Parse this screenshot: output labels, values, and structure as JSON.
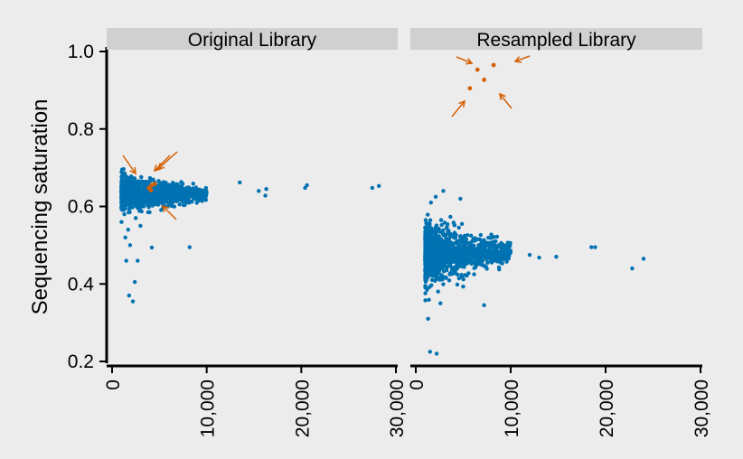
{
  "chart_data": {
    "type": "scatter",
    "ylabel": "Sequencing saturation",
    "xlabel": "",
    "xlim": [
      0,
      30000
    ],
    "ylim": [
      0.2,
      1.0
    ],
    "x_ticks": [
      0,
      10000,
      20000,
      30000
    ],
    "x_tick_labels": [
      "0",
      "10,000",
      "20,000",
      "30,000"
    ],
    "y_ticks": [
      0.2,
      0.4,
      0.6,
      0.8,
      1.0
    ],
    "y_tick_labels": [
      "0.2",
      "0.4",
      "0.6",
      "0.8",
      "1.0"
    ],
    "grid": false,
    "colors": {
      "points": "#0072b2",
      "highlight": "#d55e00",
      "strip": "#d0d0d0",
      "background": "#ececec"
    },
    "panels": [
      {
        "title": "Original Library",
        "cluster": {
          "x_range": [
            1000,
            10000
          ],
          "y_center": 0.632,
          "y_spread": 0.018
        },
        "outliers": [
          [
            13500,
            0.662
          ],
          [
            15500,
            0.64
          ],
          [
            16200,
            0.628
          ],
          [
            16300,
            0.645
          ],
          [
            20400,
            0.648
          ],
          [
            20600,
            0.655
          ],
          [
            27500,
            0.648
          ],
          [
            28200,
            0.653
          ],
          [
            8200,
            0.495
          ],
          [
            4200,
            0.494
          ],
          [
            1800,
            0.37
          ],
          [
            2200,
            0.355
          ],
          [
            2400,
            0.405
          ],
          [
            1500,
            0.46
          ],
          [
            2700,
            0.46
          ],
          [
            1400,
            0.52
          ],
          [
            1700,
            0.54
          ],
          [
            3000,
            0.55
          ],
          [
            1900,
            0.5
          ],
          [
            2500,
            0.57
          ],
          [
            1300,
            0.58
          ]
        ],
        "highlighted": [
          [
            3900,
            0.648
          ],
          [
            4200,
            0.655
          ],
          [
            4100,
            0.642
          ],
          [
            4500,
            0.658
          ]
        ]
      },
      {
        "title": "Resampled Library",
        "cluster": {
          "x_range": [
            1000,
            10000
          ],
          "y_center": 0.48,
          "y_spread": 0.032
        },
        "outliers": [
          [
            12000,
            0.475
          ],
          [
            13000,
            0.468
          ],
          [
            14800,
            0.47
          ],
          [
            18500,
            0.495
          ],
          [
            18900,
            0.495
          ],
          [
            22800,
            0.44
          ],
          [
            24000,
            0.465
          ],
          [
            1500,
            0.225
          ],
          [
            2200,
            0.22
          ],
          [
            1300,
            0.31
          ],
          [
            2600,
            0.35
          ],
          [
            7200,
            0.345
          ],
          [
            4700,
            0.62
          ],
          [
            2900,
            0.64
          ],
          [
            1600,
            0.61
          ],
          [
            2100,
            0.625
          ]
        ],
        "highlighted": [
          [
            6500,
            0.953
          ],
          [
            8200,
            0.965
          ],
          [
            7200,
            0.927
          ],
          [
            5700,
            0.905
          ]
        ]
      }
    ]
  }
}
